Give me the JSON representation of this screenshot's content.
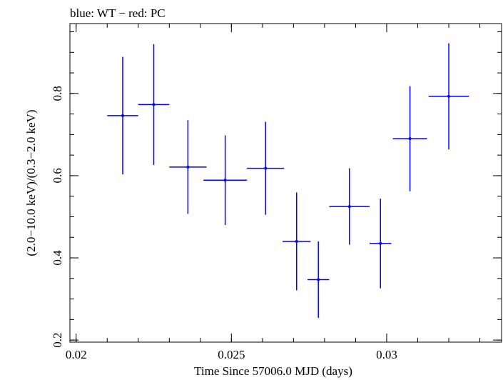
{
  "chart_data": {
    "type": "scatter",
    "title": "blue: WT − red: PC",
    "xlabel": "Time Since 57006.0 MJD (days)",
    "ylabel": "(2.0−10.0 keV)/(0.3−2.0 keV)",
    "xlim": [
      0.0198,
      0.0337
    ],
    "ylim": [
      0.195,
      0.97
    ],
    "x_ticks": [
      0.02,
      0.025,
      0.03
    ],
    "x_tick_labels": [
      "0.02",
      "0.025",
      "0.03"
    ],
    "y_ticks": [
      0.2,
      0.4,
      0.6,
      0.8
    ],
    "y_tick_labels": [
      "0.2",
      "0.4",
      "0.6",
      "0.8"
    ],
    "x_minor_step": 0.001,
    "y_minor_step": 0.05,
    "series": [
      {
        "color": "#0000ff",
        "points": [
          {
            "x": 0.0215,
            "xerr": 0.0005,
            "y": 0.746,
            "yerr_low": 0.143,
            "yerr_high": 0.143
          },
          {
            "x": 0.0225,
            "xerr": 0.0005,
            "y": 0.773,
            "yerr_low": 0.147,
            "yerr_high": 0.147
          },
          {
            "x": 0.0236,
            "xerr": 0.0006,
            "y": 0.621,
            "yerr_low": 0.114,
            "yerr_high": 0.114
          },
          {
            "x": 0.0248,
            "xerr": 0.0007,
            "y": 0.589,
            "yerr_low": 0.109,
            "yerr_high": 0.109
          },
          {
            "x": 0.0261,
            "xerr": 0.0006,
            "y": 0.618,
            "yerr_low": 0.113,
            "yerr_high": 0.113
          },
          {
            "x": 0.0271,
            "xerr": 0.00045,
            "y": 0.44,
            "yerr_low": 0.119,
            "yerr_high": 0.119
          },
          {
            "x": 0.0278,
            "xerr": 0.00035,
            "y": 0.347,
            "yerr_low": 0.093,
            "yerr_high": 0.093
          },
          {
            "x": 0.0288,
            "xerr": 0.00065,
            "y": 0.525,
            "yerr_low": 0.093,
            "yerr_high": 0.093
          },
          {
            "x": 0.0298,
            "xerr": 0.00035,
            "y": 0.435,
            "yerr_low": 0.109,
            "yerr_high": 0.109
          },
          {
            "x": 0.03075,
            "xerr": 0.00055,
            "y": 0.69,
            "yerr_low": 0.128,
            "yerr_high": 0.128
          },
          {
            "x": 0.032,
            "xerr": 0.00065,
            "y": 0.793,
            "yerr_low": 0.129,
            "yerr_high": 0.129
          }
        ]
      }
    ]
  }
}
